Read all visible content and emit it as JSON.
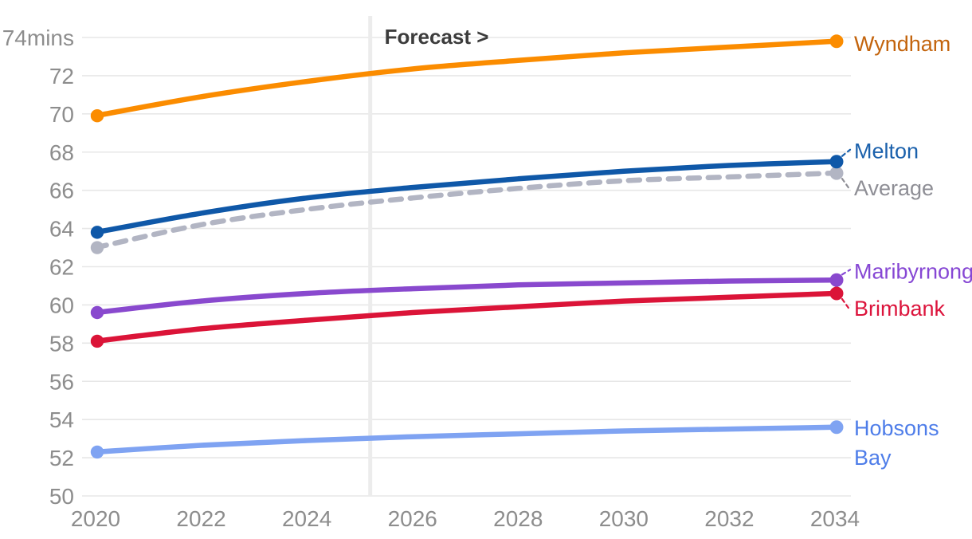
{
  "chart_data": {
    "type": "line",
    "title": "",
    "unit": "mins",
    "xlabel": "",
    "ylabel": "minutes",
    "ylim": [
      50,
      74
    ],
    "grid": true,
    "legend_position": "right",
    "categories": [
      2020,
      2022,
      2024,
      2026,
      2028,
      2030,
      2032,
      2034
    ],
    "x_tick_labels": [
      "2020",
      "2022",
      "2024",
      "2026",
      "2028",
      "2030",
      "2032",
      "2034"
    ],
    "y_tick_values": [
      74,
      72,
      70,
      68,
      66,
      64,
      62,
      60,
      58,
      56,
      54,
      52,
      50
    ],
    "y_tick_labels": [
      "74mins",
      "72",
      "70",
      "68",
      "66",
      "64",
      "62",
      "60",
      "58",
      "56",
      "54",
      "52",
      "50"
    ],
    "forecast": {
      "label": "Forecast >",
      "x": 2025.2
    },
    "series": [
      {
        "name": "Wyndham",
        "values": [
          69.9,
          70.9,
          71.7,
          72.35,
          72.8,
          73.2,
          73.5,
          73.8
        ],
        "color": "#FB8C00",
        "label_color": "#C3640D",
        "dashed": false,
        "connector": false,
        "label_lines": [
          "Wyndham"
        ],
        "label_dy": 3
      },
      {
        "name": "Melton",
        "values": [
          63.8,
          64.8,
          65.6,
          66.15,
          66.6,
          67.0,
          67.3,
          67.5
        ],
        "color": "#0F58A8",
        "label_color": "#1B61AC",
        "dashed": false,
        "connector": true,
        "label_lines": [
          "Melton"
        ],
        "label_dy": -13
      },
      {
        "name": "Average",
        "values": [
          63.0,
          64.2,
          65.0,
          65.6,
          66.1,
          66.5,
          66.7,
          66.9
        ],
        "color": "#B2B5C3",
        "label_color": "#8E8E95",
        "dashed": true,
        "connector": true,
        "label_lines": [
          "Average"
        ],
        "label_dy": 19
      },
      {
        "name": "Maribyrnong",
        "values": [
          59.6,
          60.2,
          60.6,
          60.85,
          61.05,
          61.15,
          61.25,
          61.3
        ],
        "color": "#8949CE",
        "label_color": "#8647D4",
        "dashed": false,
        "connector": true,
        "label_lines": [
          "Maribyrnong"
        ],
        "label_dy": -11
      },
      {
        "name": "Brimbank",
        "values": [
          58.1,
          58.75,
          59.2,
          59.6,
          59.9,
          60.2,
          60.4,
          60.6
        ],
        "color": "#DB1438",
        "label_color": "#DC143C",
        "dashed": false,
        "connector": true,
        "label_lines": [
          "Brimbank"
        ],
        "label_dy": 19
      },
      {
        "name": "Hobsons Bay",
        "values": [
          52.3,
          52.65,
          52.9,
          53.1,
          53.25,
          53.4,
          53.5,
          53.6
        ],
        "color": "#7FA3F2",
        "label_color": "#4E7DE9",
        "dashed": false,
        "connector": false,
        "label_lines": [
          "Hobsons",
          "Bay"
        ],
        "label_dy": 1
      }
    ]
  },
  "style": {
    "axis_text_color": "#8D8D8D",
    "gridline_color": "#E7E7E7",
    "forecast_band_color": "#ECECEC",
    "forecast_text_color": "#3C3C3C",
    "background_color": "#FFFFFF"
  }
}
